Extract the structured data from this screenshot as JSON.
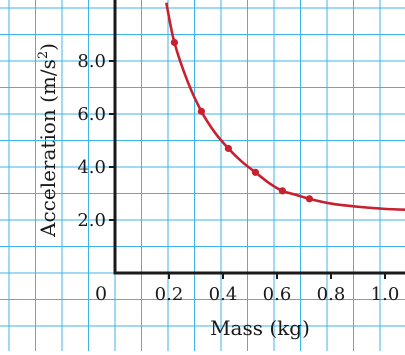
{
  "chart_data": {
    "type": "scatter",
    "title": "",
    "xlabel": "Mass (kg)",
    "ylabel_main": "Acceleration (m/s",
    "ylabel_sup": "2",
    "ylabel_close": ")",
    "origin_label": "0",
    "xlim": [
      0,
      1.1
    ],
    "ylim": [
      0,
      10
    ],
    "x_ticks": [
      {
        "value": 0.2,
        "label": "0.2"
      },
      {
        "value": 0.4,
        "label": "0.4"
      },
      {
        "value": 0.6,
        "label": "0.6"
      },
      {
        "value": 0.8,
        "label": "0.8"
      },
      {
        "value": 1.0,
        "label": "1.0"
      }
    ],
    "y_ticks": [
      {
        "value": 2,
        "label": "2.0"
      },
      {
        "value": 4,
        "label": "4.0"
      },
      {
        "value": 6,
        "label": "6.0"
      },
      {
        "value": 8,
        "label": "8.0"
      }
    ],
    "grid": true,
    "series": [
      {
        "points": [
          {
            "x": 0.22,
            "y": 8.7
          },
          {
            "x": 0.32,
            "y": 6.1
          },
          {
            "x": 0.42,
            "y": 4.7
          },
          {
            "x": 0.52,
            "y": 3.8
          },
          {
            "x": 0.62,
            "y": 3.1
          },
          {
            "x": 0.72,
            "y": 2.8
          }
        ],
        "curve": [
          {
            "x": 0.19,
            "y": 10.2
          },
          {
            "x": 0.22,
            "y": 8.7
          },
          {
            "x": 0.27,
            "y": 7.2
          },
          {
            "x": 0.32,
            "y": 6.1
          },
          {
            "x": 0.37,
            "y": 5.3
          },
          {
            "x": 0.42,
            "y": 4.7
          },
          {
            "x": 0.47,
            "y": 4.2
          },
          {
            "x": 0.52,
            "y": 3.8
          },
          {
            "x": 0.57,
            "y": 3.4
          },
          {
            "x": 0.62,
            "y": 3.1
          },
          {
            "x": 0.67,
            "y": 2.95
          },
          {
            "x": 0.72,
            "y": 2.8
          },
          {
            "x": 0.8,
            "y": 2.62
          },
          {
            "x": 0.9,
            "y": 2.5
          },
          {
            "x": 1.0,
            "y": 2.42
          },
          {
            "x": 1.1,
            "y": 2.38
          }
        ]
      }
    ],
    "colors": {
      "curve": "#c8202f",
      "points": "#c8202f",
      "grid": "#3fb4e6",
      "axis": "#1a1a1a"
    }
  }
}
